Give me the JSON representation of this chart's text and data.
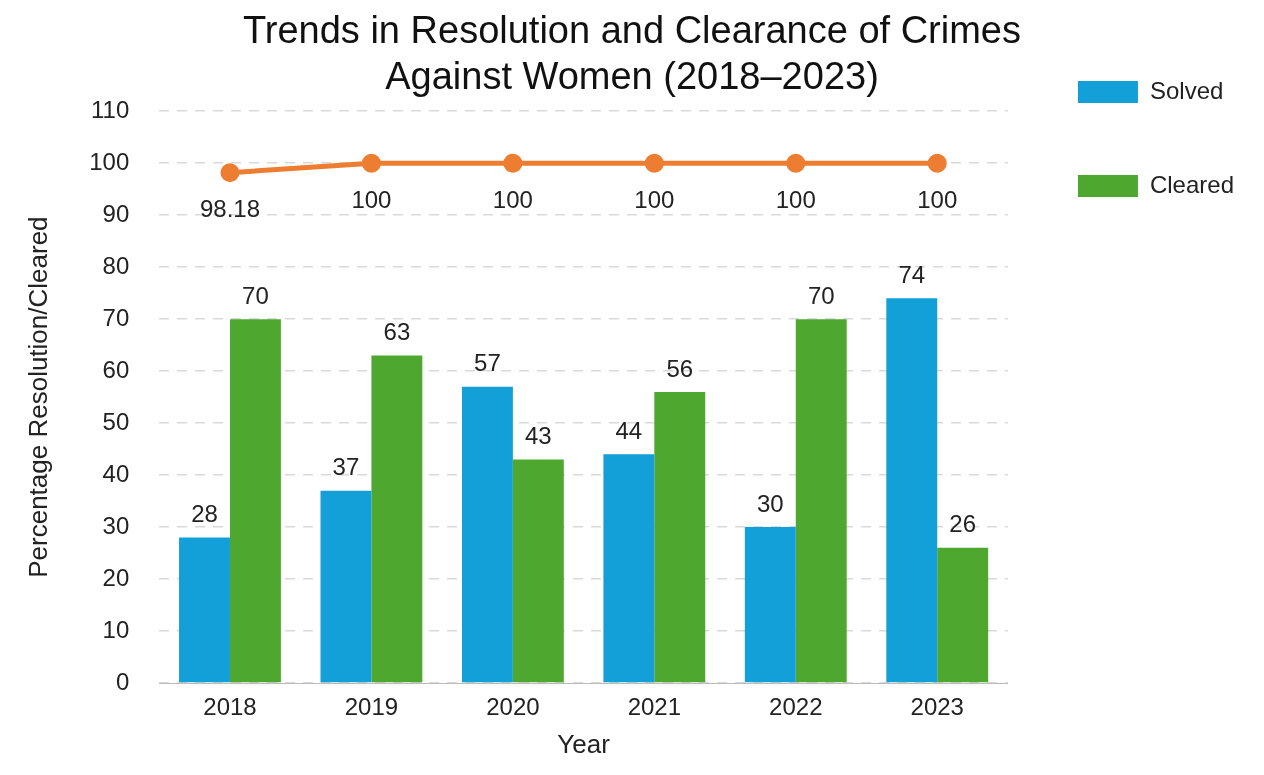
{
  "chart_data": {
    "type": "bar",
    "title": "Trends in Resolution and Clearance of Crimes Against Women (2018–2023)",
    "xlabel": "Year",
    "ylabel": "Percentage Resolution/Cleared",
    "categories": [
      "2018",
      "2019",
      "2020",
      "2021",
      "2022",
      "2023"
    ],
    "series": [
      {
        "name": "Solved",
        "color": "#139fd7",
        "values": [
          28,
          37,
          57,
          44,
          30,
          74
        ]
      },
      {
        "name": "Cleared",
        "color": "#4ea72e",
        "values": [
          70,
          63,
          43,
          56,
          70,
          26
        ]
      },
      {
        "type": "line",
        "color": "#ed7d31",
        "values": [
          98.18,
          100,
          100,
          100,
          100,
          100
        ]
      }
    ],
    "ylim": [
      0,
      110
    ],
    "yticks": [
      0,
      10,
      20,
      30,
      40,
      50,
      60,
      70,
      80,
      90,
      100,
      110
    ],
    "grid": "y",
    "legend": "right",
    "marker": "circle",
    "line_style": "solid",
    "data_labels": true
  }
}
